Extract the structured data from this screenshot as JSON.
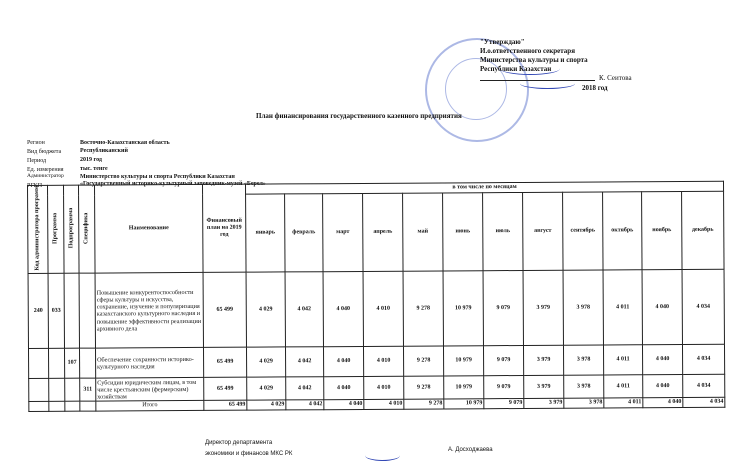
{
  "approval": {
    "title": "\"Утверждаю\"",
    "line1": "И.о.ответственного  секретаря",
    "line2": "Министерства культуры и спорта",
    "line3": "Республики Казахстан",
    "signer": "К. Сеитова",
    "year": "2018 год"
  },
  "doc_title": "План финансирования государственного казенного  предприятия",
  "meta": [
    {
      "label": "Регион",
      "value": "Восточно-Казахстанская область"
    },
    {
      "label": "Вид бюджета",
      "value": "Республиканский"
    },
    {
      "label": "Период",
      "value": "2019 год"
    },
    {
      "label": "Ед. измерения",
      "value": "тыс. тенге"
    },
    {
      "label": "Администратор",
      "value": "Министерство культуры и спорта Республики Казахстан"
    },
    {
      "label": "РГКП",
      "value": "«Государственный историко-культурный заповедник-музей «Берел»"
    }
  ],
  "table": {
    "headers": {
      "admin_code": "Код администратора программ",
      "program": "Программа",
      "subprogram": "Подпрограмма",
      "specific": "Специфика",
      "name": "Наименование",
      "plan": "Финансовый план на 2019  год",
      "by_months": "в том числе по месяцам",
      "months": [
        "январь",
        "февраль",
        "март",
        "апрель",
        "май",
        "июнь",
        "июль",
        "август",
        "сентябрь",
        "октябрь",
        "ноябрь",
        "декабрь"
      ]
    },
    "rows": [
      {
        "admin_code": "240",
        "program": "033",
        "subprogram": "",
        "specific": "",
        "name": "Повышение конкурентоспособности сферы культуры и искусства, сохранение, изучение и популяризация казахстанского культурного наследия и повышение эффективности реализации архивного дела",
        "plan": "65 499",
        "months": [
          "4 029",
          "4 042",
          "4 040",
          "4 010",
          "9 278",
          "10 979",
          "9 079",
          "3 979",
          "3 978",
          "4 011",
          "4 040",
          "4 034"
        ]
      },
      {
        "admin_code": "",
        "program": "",
        "subprogram": "107",
        "specific": "",
        "name": "Обеспечение сохранности историко-культурного наследия",
        "plan": "65 499",
        "months": [
          "4 029",
          "4 042",
          "4 040",
          "4 010",
          "9 278",
          "10 979",
          "9 079",
          "3 979",
          "3 978",
          "4 011",
          "4 040",
          "4 034"
        ]
      },
      {
        "admin_code": "",
        "program": "",
        "subprogram": "",
        "specific": "311",
        "name": "Субсидии юридическим лицам, в том числе крестьянским (фермерским) хозяйствам",
        "plan": "65 499",
        "months": [
          "4 029",
          "4 042",
          "4 040",
          "4 010",
          "9 278",
          "10 979",
          "9 079",
          "3 979",
          "3 978",
          "4 011",
          "4 040",
          "4 034"
        ]
      }
    ],
    "total": {
      "label": "Итого",
      "plan": "65 499",
      "months": [
        "4 029",
        "4 042",
        "4 040",
        "4 010",
        "9 278",
        "10 979",
        "9 079",
        "3 979",
        "3 978",
        "4 011",
        "4 040",
        "4 034"
      ]
    }
  },
  "footer": {
    "position1": "Директор департамента",
    "position2": "экономики и финансов МКС РК",
    "signer": "А. Досходжаева"
  }
}
